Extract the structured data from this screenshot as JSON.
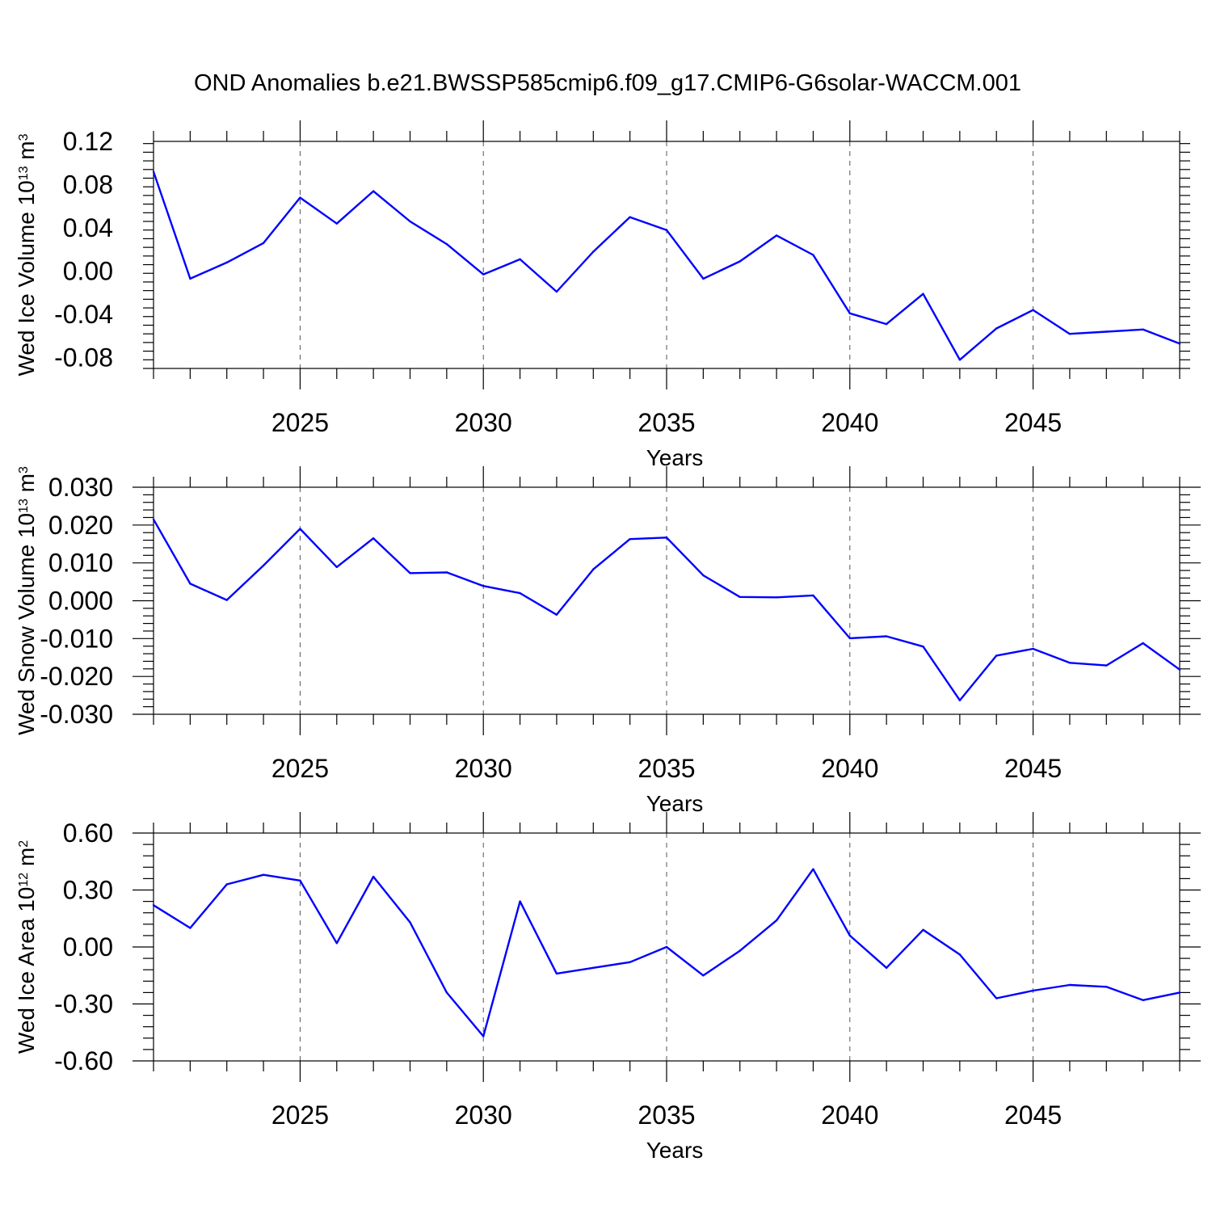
{
  "title": "OND Anomalies b.e21.BWSSP585cmip6.f09_g17.CMIP6-G6solar-WACCM.001",
  "colors": {
    "line": "#0000ff",
    "axis": "#000000",
    "gridline": "#555555"
  },
  "chart_data": [
    {
      "type": "line",
      "ylabel_main": "Wed Ice Volume 10",
      "ylabel_exp": "13",
      "ylabel_unit": " m",
      "ylabel_unit_exp": "3",
      "xlabel": "Years",
      "xlim": [
        2021,
        2049
      ],
      "ylim": [
        -0.09,
        0.12
      ],
      "yticks": [
        -0.08,
        -0.04,
        0.0,
        0.04,
        0.08,
        0.12
      ],
      "ytick_labels": [
        "-0.08",
        "-0.04",
        "0.00",
        "0.04",
        "0.08",
        "0.12"
      ],
      "xticks": [
        2025,
        2030,
        2035,
        2040,
        2045
      ],
      "xtick_labels": [
        "2025",
        "2030",
        "2035",
        "2040",
        "2045"
      ],
      "grid": "vertical dashed at major x ticks",
      "x": [
        2021,
        2022,
        2023,
        2024,
        2025,
        2026,
        2027,
        2028,
        2029,
        2030,
        2031,
        2032,
        2033,
        2034,
        2035,
        2036,
        2037,
        2038,
        2039,
        2040,
        2041,
        2042,
        2043,
        2044,
        2045,
        2046,
        2047,
        2048,
        2049
      ],
      "y": [
        0.092,
        -0.007,
        0.008,
        0.026,
        0.068,
        0.044,
        0.074,
        0.046,
        0.025,
        -0.003,
        0.011,
        -0.019,
        0.018,
        0.05,
        0.038,
        -0.007,
        0.009,
        0.033,
        0.015,
        -0.039,
        -0.049,
        -0.021,
        -0.082,
        -0.053,
        -0.036,
        -0.058,
        -0.056,
        -0.054,
        -0.067
      ]
    },
    {
      "type": "line",
      "ylabel_main": "Wed Snow Volume 10",
      "ylabel_exp": "13",
      "ylabel_unit": " m",
      "ylabel_unit_exp": "3",
      "xlabel": "Years",
      "xlim": [
        2021,
        2049
      ],
      "ylim": [
        -0.03,
        0.03
      ],
      "yticks": [
        -0.03,
        -0.02,
        -0.01,
        0.0,
        0.01,
        0.02,
        0.03
      ],
      "ytick_labels": [
        "-0.030",
        "-0.020",
        "-0.010",
        "0.000",
        "0.010",
        "0.020",
        "0.030"
      ],
      "xticks": [
        2025,
        2030,
        2035,
        2040,
        2045
      ],
      "xtick_labels": [
        "2025",
        "2030",
        "2035",
        "2040",
        "2045"
      ],
      "grid": "vertical dashed at major x ticks",
      "x": [
        2021,
        2022,
        2023,
        2024,
        2025,
        2026,
        2027,
        2028,
        2029,
        2030,
        2031,
        2032,
        2033,
        2034,
        2035,
        2036,
        2037,
        2038,
        2039,
        2040,
        2041,
        2042,
        2043,
        2044,
        2045,
        2046,
        2047,
        2048,
        2049
      ],
      "y": [
        0.0215,
        0.0045,
        0.0002,
        0.0093,
        0.019,
        0.0089,
        0.0165,
        0.0073,
        0.0075,
        0.0039,
        0.002,
        -0.0037,
        0.0083,
        0.0163,
        0.0167,
        0.0067,
        0.001,
        0.0009,
        0.0014,
        -0.0099,
        -0.0094,
        -0.0121,
        -0.0263,
        -0.0145,
        -0.0127,
        -0.0164,
        -0.0171,
        -0.0112,
        -0.0182
      ]
    },
    {
      "type": "line",
      "ylabel_main": "Wed Ice Area 10",
      "ylabel_exp": "12",
      "ylabel_unit": " m",
      "ylabel_unit_exp": "2",
      "xlabel": "Years",
      "xlim": [
        2021,
        2049
      ],
      "ylim": [
        -0.6,
        0.6
      ],
      "yticks": [
        -0.6,
        -0.3,
        0.0,
        0.3,
        0.6
      ],
      "ytick_labels": [
        "-0.60",
        "-0.30",
        "0.00",
        "0.30",
        "0.60"
      ],
      "xticks": [
        2025,
        2030,
        2035,
        2040,
        2045
      ],
      "xtick_labels": [
        "2025",
        "2030",
        "2035",
        "2040",
        "2045"
      ],
      "grid": "vertical dashed at major x ticks",
      "x": [
        2021,
        2022,
        2023,
        2024,
        2025,
        2026,
        2027,
        2028,
        2029,
        2030,
        2031,
        2032,
        2033,
        2034,
        2035,
        2036,
        2037,
        2038,
        2039,
        2040,
        2041,
        2042,
        2043,
        2044,
        2045,
        2046,
        2047,
        2048,
        2049
      ],
      "y": [
        0.22,
        0.1,
        0.33,
        0.38,
        0.35,
        0.02,
        0.37,
        0.13,
        -0.24,
        -0.47,
        0.24,
        -0.14,
        -0.11,
        -0.08,
        0.0,
        -0.15,
        -0.02,
        0.14,
        0.41,
        0.06,
        -0.11,
        0.09,
        -0.04,
        -0.27,
        -0.23,
        -0.2,
        -0.21,
        -0.28,
        -0.24
      ]
    }
  ]
}
